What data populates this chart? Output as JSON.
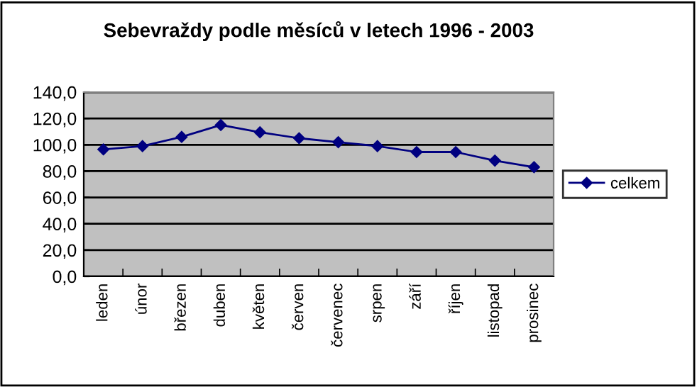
{
  "chart_data": {
    "type": "line",
    "title": "Sebevraždy podle měsíců v letech 1996 - 2003",
    "categories": [
      "leden",
      "únor",
      "březen",
      "duben",
      "květen",
      "červen",
      "červenec",
      "srpen",
      "září",
      "říjen",
      "listopad",
      "prosinec"
    ],
    "series": [
      {
        "name": "celkem",
        "color": "#000080",
        "values": [
          96.5,
          99,
          106,
          115,
          109.5,
          105,
          102,
          99,
          94.5,
          94.5,
          88,
          83
        ]
      }
    ],
    "ylim": [
      0,
      140
    ],
    "yticks": [
      {
        "value": 0,
        "label": "0,0"
      },
      {
        "value": 20,
        "label": "20,0"
      },
      {
        "value": 40,
        "label": "40,0"
      },
      {
        "value": 60,
        "label": "60,0"
      },
      {
        "value": 80,
        "label": "80,0"
      },
      {
        "value": 100,
        "label": "100,0"
      },
      {
        "value": 120,
        "label": "120,0"
      },
      {
        "value": 140,
        "label": "140,0"
      }
    ],
    "grid": "y",
    "legend": "right",
    "marker": "diamond",
    "line_style": "solid"
  }
}
